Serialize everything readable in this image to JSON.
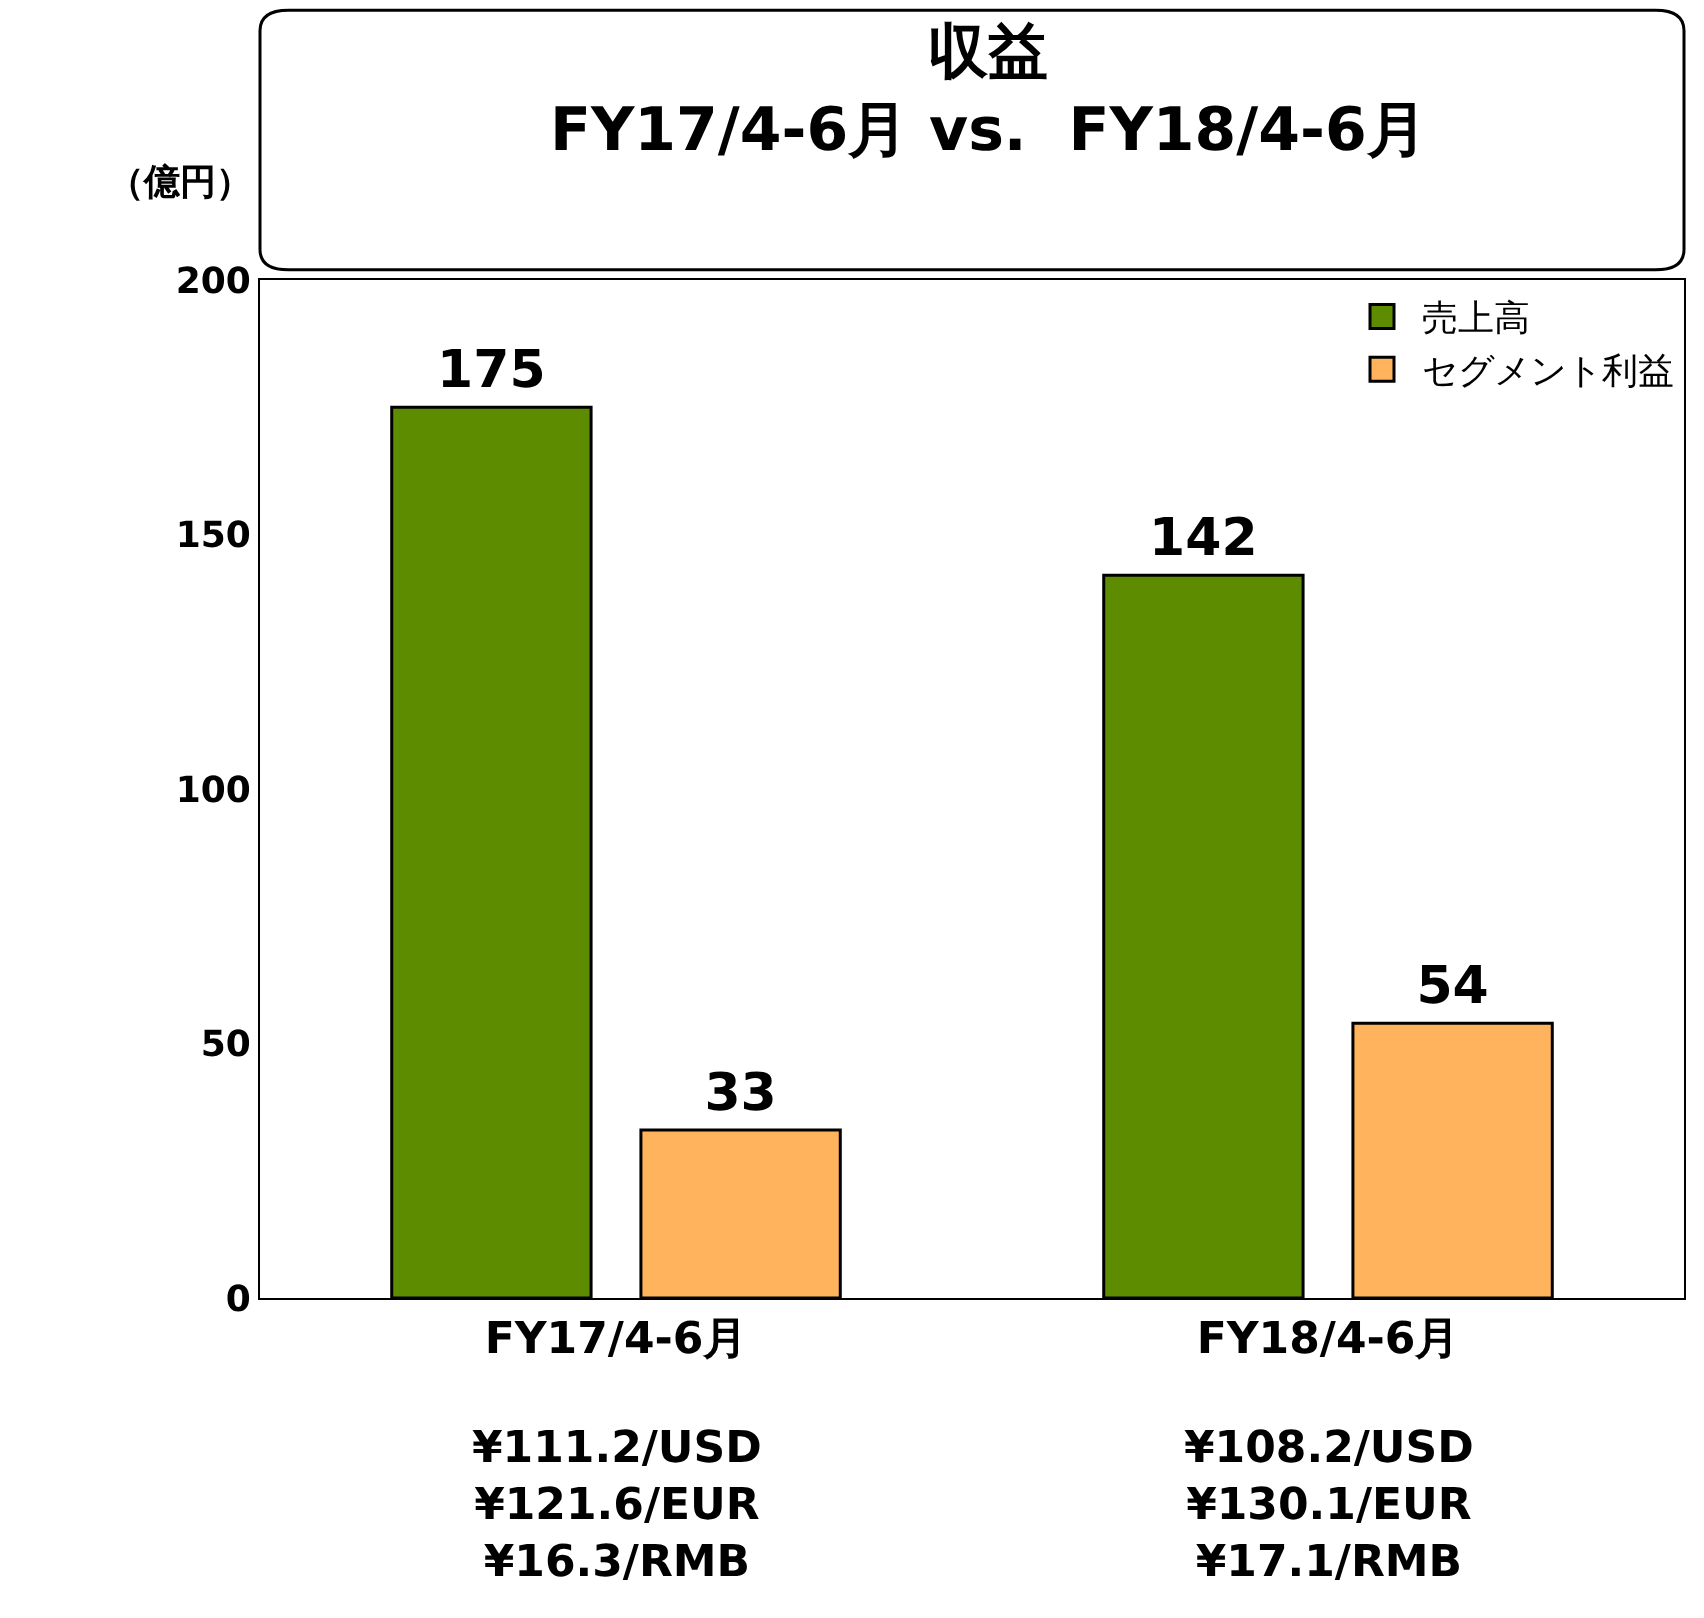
{
  "chart_data": {
    "type": "bar",
    "title": "収益\nFY17/4-6月 vs.  FY18/4-6月",
    "ylabel": "（億円）",
    "categories": [
      "FY17/4-6月",
      "FY18/4-6月"
    ],
    "series": [
      {
        "name": "売上高",
        "color": "#5e8c00",
        "values": [
          175,
          142
        ]
      },
      {
        "name": "セグメント利益",
        "color": "#ffb35c",
        "values": [
          33,
          54
        ]
      }
    ],
    "ylim": [
      0,
      200
    ],
    "yticks": [
      0,
      50,
      100,
      150,
      200
    ],
    "legend": "top right",
    "data_labels": true,
    "annotations": [
      "¥111.2/USD\n¥121.6/EUR\n¥16.3/RMB",
      "¥108.2/USD\n¥130.1/EUR\n¥17.1/RMB"
    ]
  }
}
